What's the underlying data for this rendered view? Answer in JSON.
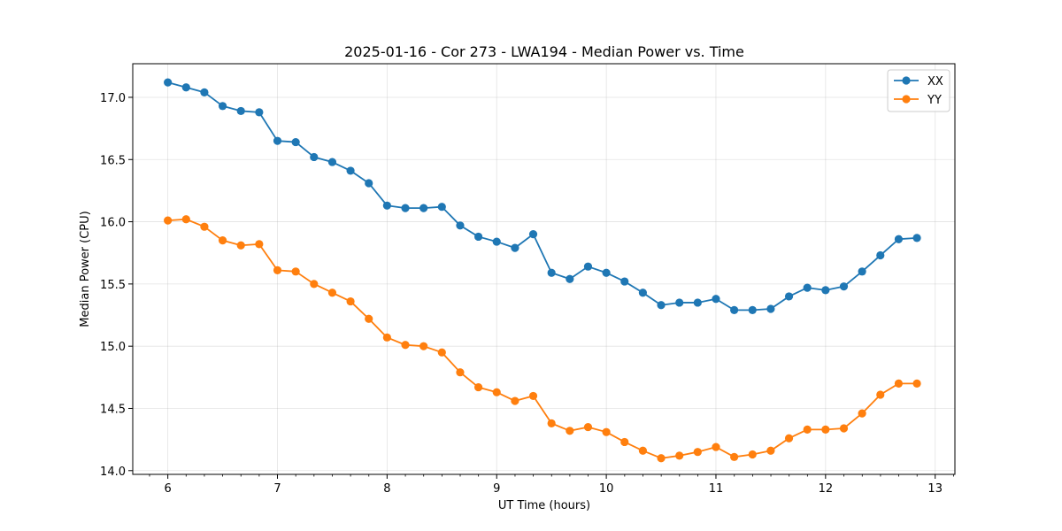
{
  "chart_data": {
    "type": "line",
    "title": "2025-01-16 - Cor 273 - LWA194 - Median Power vs. Time",
    "xlabel": "UT Time (hours)",
    "ylabel": "Median Power (CPU)",
    "xlim": [
      5.68,
      13.18
    ],
    "ylim": [
      13.97,
      17.27
    ],
    "grid": true,
    "legend_position": "top-right",
    "x_ticks": [
      6,
      7,
      8,
      9,
      10,
      11,
      12,
      13
    ],
    "x_tick_labels": [
      "6",
      "7",
      "8",
      "9",
      "10",
      "11",
      "12",
      "13"
    ],
    "x_minor_step": 0.1667,
    "y_ticks": [
      14.0,
      14.5,
      15.0,
      15.5,
      16.0,
      16.5,
      17.0
    ],
    "y_tick_labels": [
      "14.0",
      "14.5",
      "15.0",
      "15.5",
      "16.0",
      "16.5",
      "17.0"
    ],
    "x": [
      6.0,
      6.1667,
      6.3333,
      6.5,
      6.6667,
      6.8333,
      7.0,
      7.1667,
      7.3333,
      7.5,
      7.6667,
      7.8333,
      8.0,
      8.1667,
      8.3333,
      8.5,
      8.6667,
      8.8333,
      9.0,
      9.1667,
      9.3333,
      9.5,
      9.6667,
      9.8333,
      10.0,
      10.1667,
      10.3333,
      10.5,
      10.6667,
      10.8333,
      11.0,
      11.1667,
      11.3333,
      11.5,
      11.6667,
      11.8333,
      12.0,
      12.1667,
      12.3333,
      12.5,
      12.6667,
      12.8333
    ],
    "series": [
      {
        "name": "XX",
        "color": "#1f77b4",
        "values": [
          17.12,
          17.08,
          17.04,
          16.93,
          16.89,
          16.88,
          16.65,
          16.64,
          16.52,
          16.48,
          16.41,
          16.31,
          16.13,
          16.11,
          16.11,
          16.12,
          15.97,
          15.88,
          15.84,
          15.79,
          15.9,
          15.59,
          15.54,
          15.64,
          15.59,
          15.52,
          15.43,
          15.33,
          15.35,
          15.35,
          15.38,
          15.29,
          15.29,
          15.3,
          15.4,
          15.47,
          15.45,
          15.48,
          15.6,
          15.73,
          15.86,
          15.87
        ]
      },
      {
        "name": "YY",
        "color": "#ff7f0e",
        "values": [
          16.01,
          16.02,
          15.96,
          15.85,
          15.81,
          15.82,
          15.61,
          15.6,
          15.5,
          15.43,
          15.36,
          15.22,
          15.07,
          15.01,
          15.0,
          14.95,
          14.79,
          14.67,
          14.63,
          14.56,
          14.6,
          14.38,
          14.32,
          14.35,
          14.31,
          14.23,
          14.16,
          14.1,
          14.12,
          14.15,
          14.19,
          14.11,
          14.13,
          14.16,
          14.26,
          14.33,
          14.33,
          14.34,
          14.46,
          14.61,
          14.7,
          14.7
        ]
      }
    ]
  }
}
